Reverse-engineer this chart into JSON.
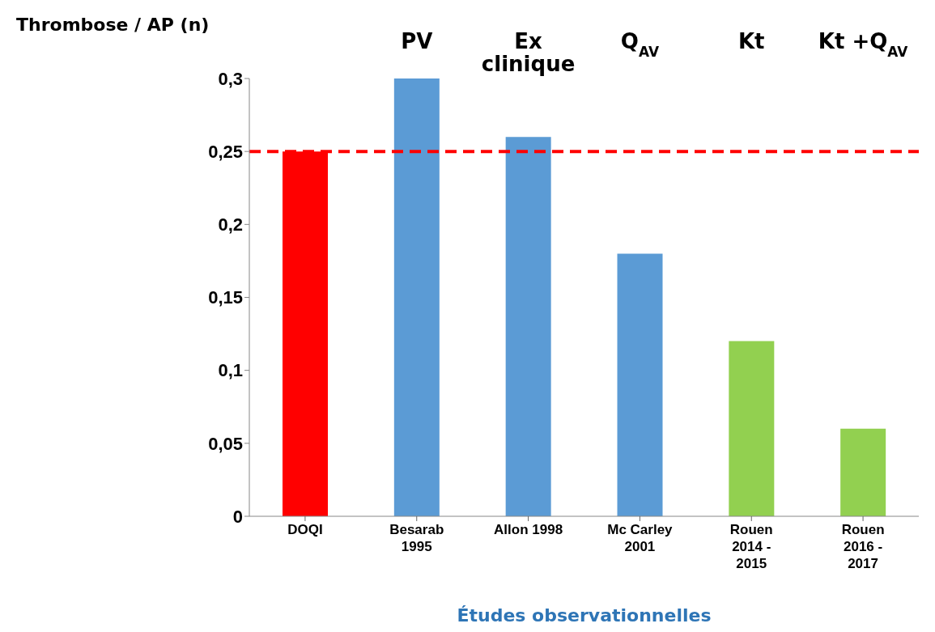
{
  "chart_data": {
    "type": "bar",
    "ylabel": "Thrombose / AP (n)",
    "xlabel": "Études observationnelles",
    "categories": [
      "DOQI",
      "Besarab\n1995",
      "Allon 1998",
      "Mc Carley\n2001",
      "Rouen\n2014 -\n2015",
      "Rouen\n2016 -\n2017"
    ],
    "values": [
      0.25,
      0.3,
      0.26,
      0.18,
      0.12,
      0.06
    ],
    "colors": [
      "#ff0000",
      "#5b9bd5",
      "#5b9bd5",
      "#5b9bd5",
      "#92d050",
      "#92d050"
    ],
    "ylim": [
      0,
      0.3
    ],
    "yticks": [
      0,
      {
        "value": 0.05,
        "label": "0,05"
      },
      {
        "value": 0.1,
        "label": "0,1"
      },
      {
        "value": 0.15,
        "label": "0,15"
      },
      {
        "value": 0.2,
        "label": "0,2"
      },
      {
        "value": 0.25,
        "label": "0,25"
      },
      {
        "value": 0.3,
        "label": "0,3"
      }
    ],
    "ref_lines": [
      {
        "axis": "y",
        "value": 0.25,
        "color": "#ff0000",
        "line_style": "dashed"
      }
    ],
    "annotations": [
      "PV",
      "Ex\nclinique",
      "Q$_{AV}$",
      "Kt",
      "Kt +Q$_{AV}$"
    ]
  }
}
